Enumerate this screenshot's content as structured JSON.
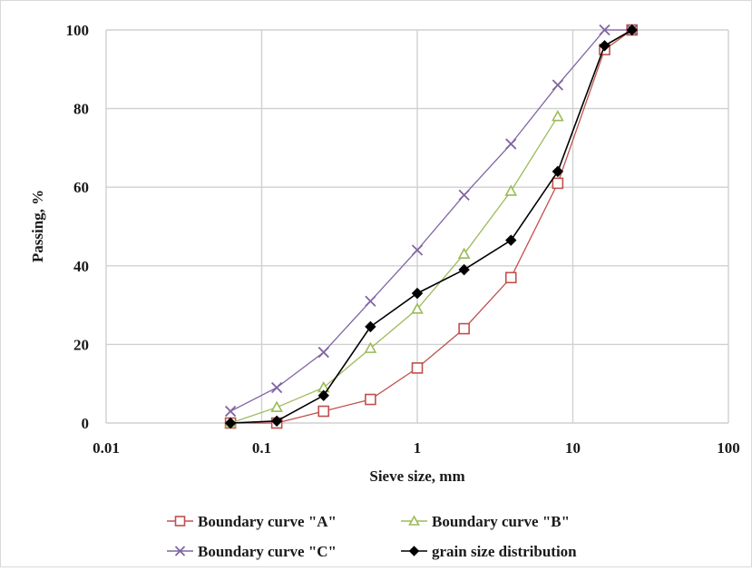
{
  "chart_data": {
    "type": "line",
    "xlabel": "Sieve size, mm",
    "ylabel": "Passing, %",
    "x_scale": "log",
    "xlim": [
      0.01,
      100
    ],
    "ylim": [
      0,
      100
    ],
    "x_ticks": [
      "0.01",
      "0.1",
      "1",
      "10",
      "100"
    ],
    "y_ticks": [
      "0",
      "20",
      "40",
      "60",
      "80",
      "100"
    ],
    "grid": true,
    "legend_position": "bottom",
    "series": [
      {
        "name": "Boundary curve \"A\"",
        "color": "#c0504d",
        "marker": "square-open",
        "x": [
          0.063,
          0.125,
          0.25,
          0.5,
          1,
          2,
          4,
          8,
          16,
          24
        ],
        "y": [
          0,
          0,
          3,
          6,
          14,
          24,
          37,
          61,
          95,
          100
        ]
      },
      {
        "name": "Boundary curve \"B\"",
        "color": "#9bbb59",
        "marker": "triangle-open",
        "x": [
          0.063,
          0.125,
          0.25,
          0.5,
          1,
          2,
          4,
          8
        ],
        "y": [
          0,
          4,
          9,
          19,
          29,
          43,
          59,
          78
        ]
      },
      {
        "name": "Boundary curve \"C\"",
        "color": "#8064a2",
        "marker": "x",
        "x": [
          0.063,
          0.125,
          0.25,
          0.5,
          1,
          2,
          4,
          8,
          16,
          24
        ],
        "y": [
          3,
          9,
          18,
          31,
          44,
          58,
          71,
          86,
          100,
          100
        ]
      },
      {
        "name": "grain size distribution",
        "color": "#000000",
        "marker": "diamond-filled",
        "x": [
          0.063,
          0.125,
          0.25,
          0.5,
          1,
          2,
          4,
          8,
          16,
          24
        ],
        "y": [
          0,
          0.5,
          7,
          24.5,
          33,
          39,
          46.5,
          64,
          96,
          100
        ]
      }
    ]
  }
}
